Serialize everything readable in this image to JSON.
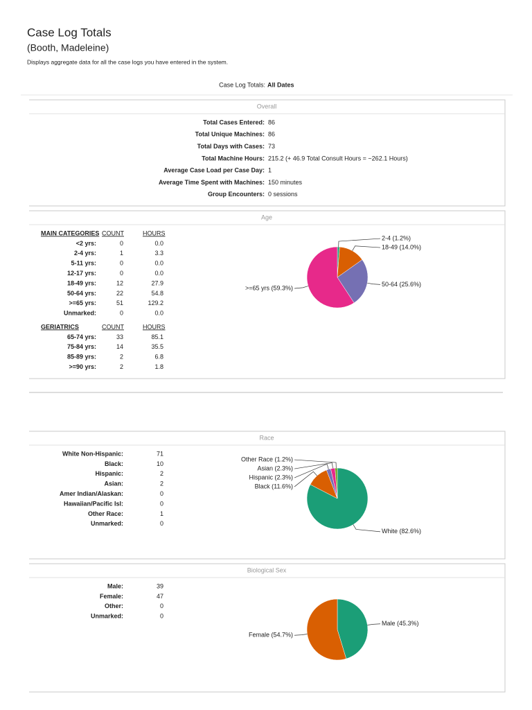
{
  "header": {
    "title": "Case Log Totals",
    "subtitle": "(Booth, Madeleine)",
    "description": "Displays aggregate data for all the case logs you have entered in the system."
  },
  "filter": {
    "label": "Case Log Totals:",
    "value": "All Dates"
  },
  "overall": {
    "title": "Overall",
    "rows": [
      [
        "Total Cases Entered:",
        "86"
      ],
      [
        "Total Unique Machines:",
        "86"
      ],
      [
        "Total Days with Cases:",
        "73"
      ],
      [
        "Total Machine Hours:",
        "215.2 (+ 46.9 Total Consult Hours = ~262.1 Hours)"
      ],
      [
        "Average Case Load per Case Day:",
        "1"
      ],
      [
        "Average Time Spent with Machines:",
        "150 minutes"
      ],
      [
        "Group Encounters:",
        "0 sessions"
      ]
    ]
  },
  "age": {
    "title": "Age",
    "main_header": [
      "MAIN CATEGORIES",
      "COUNT",
      "HOURS"
    ],
    "main_rows": [
      [
        "<2 yrs:",
        "0",
        "0.0"
      ],
      [
        "2-4 yrs:",
        "1",
        "3.3"
      ],
      [
        "5-11 yrs:",
        "0",
        "0.0"
      ],
      [
        "12-17 yrs:",
        "0",
        "0.0"
      ],
      [
        "18-49 yrs:",
        "12",
        "27.9"
      ],
      [
        "50-64 yrs:",
        "22",
        "54.8"
      ],
      [
        ">=65 yrs:",
        "51",
        "129.2"
      ],
      [
        "Unmarked:",
        "0",
        "0.0"
      ]
    ],
    "geri_header": [
      "GERIATRICS",
      "COUNT",
      "HOURS"
    ],
    "geri_rows": [
      [
        "65-74 yrs:",
        "33",
        "85.1"
      ],
      [
        "75-84 yrs:",
        "14",
        "35.5"
      ],
      [
        "85-89 yrs:",
        "2",
        "6.8"
      ],
      [
        ">=90 yrs:",
        "2",
        "1.8"
      ]
    ],
    "pie": {
      "type": "pie",
      "slices": [
        {
          "label": "2-4 (1.2%)",
          "value": 1.2,
          "color": "#1b9e77"
        },
        {
          "label": "18-49 (14.0%)",
          "value": 14.0,
          "color": "#d95f02"
        },
        {
          "label": "50-64 (25.6%)",
          "value": 25.6,
          "color": "#7570b3"
        },
        {
          "label": ">=65 yrs (59.3%)",
          "value": 59.3,
          "color": "#e7298a"
        }
      ]
    }
  },
  "race": {
    "title": "Race",
    "rows": [
      [
        "White Non-Hispanic:",
        "71"
      ],
      [
        "Black:",
        "10"
      ],
      [
        "Hispanic:",
        "2"
      ],
      [
        "Asian:",
        "2"
      ],
      [
        "Amer Indian/Alaskan:",
        "0"
      ],
      [
        "Hawaiian/Pacific Isl:",
        "0"
      ],
      [
        "Other Race:",
        "1"
      ],
      [
        "Unmarked:",
        "0"
      ]
    ],
    "pie": {
      "type": "pie",
      "slices": [
        {
          "label": "White (82.6%)",
          "value": 82.6,
          "color": "#1b9e77"
        },
        {
          "label": "Black (11.6%)",
          "value": 11.6,
          "color": "#d95f02"
        },
        {
          "label": "Hispanic (2.3%)",
          "value": 2.3,
          "color": "#7570b3"
        },
        {
          "label": "Asian (2.3%)",
          "value": 2.3,
          "color": "#e7298a"
        },
        {
          "label": "Other Race (1.2%)",
          "value": 1.2,
          "color": "#66a61e"
        }
      ]
    }
  },
  "sex": {
    "title": "Biological Sex",
    "rows": [
      [
        "Male:",
        "39"
      ],
      [
        "Female:",
        "47"
      ],
      [
        "Other:",
        "0"
      ],
      [
        "Unmarked:",
        "0"
      ]
    ],
    "pie": {
      "type": "pie",
      "slices": [
        {
          "label": "Male (45.3%)",
          "value": 45.3,
          "color": "#1b9e77"
        },
        {
          "label": "Female (54.7%)",
          "value": 54.7,
          "color": "#d95f02"
        }
      ]
    }
  }
}
